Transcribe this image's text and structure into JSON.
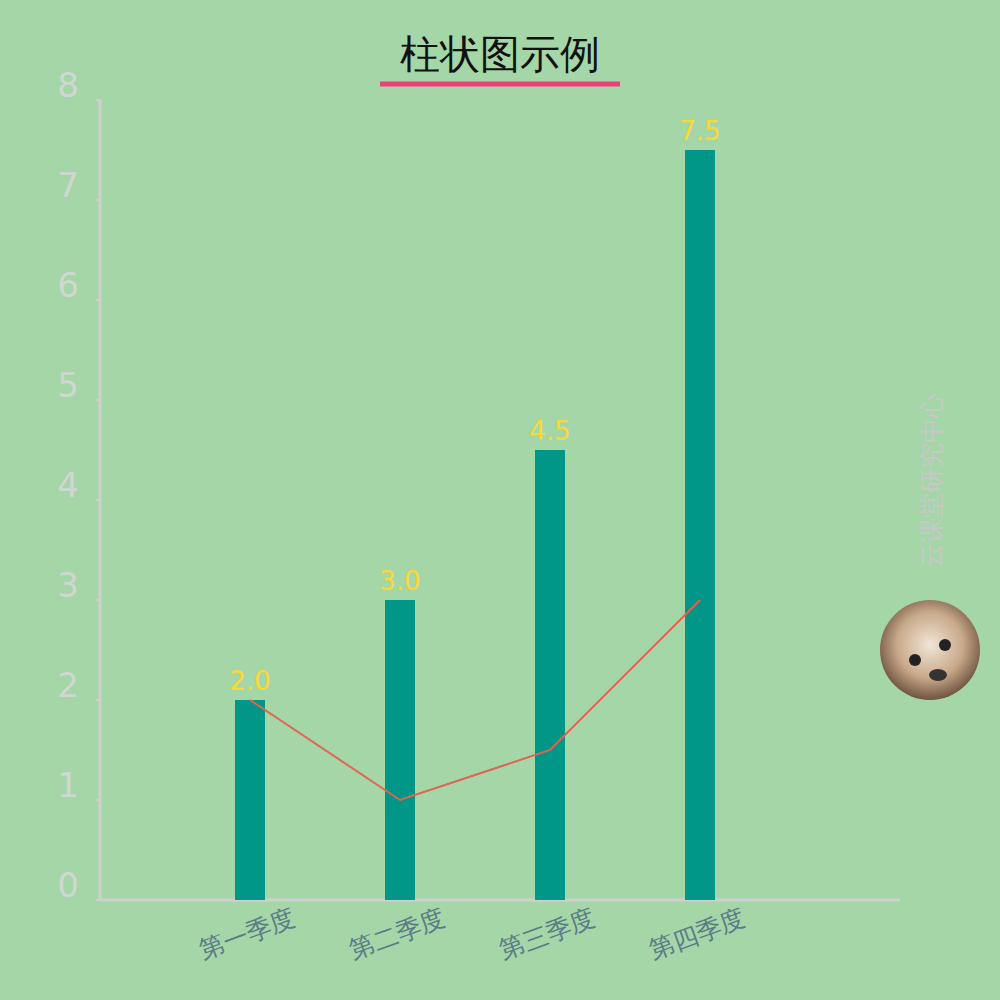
{
  "chart_data": {
    "type": "bar",
    "title": "柱状图示例",
    "categories": [
      "第一季度",
      "第二季度",
      "第三季度",
      "第四季度"
    ],
    "series": [
      {
        "type": "bar",
        "color": "#009688",
        "values": [
          2.0,
          3.0,
          4.5,
          7.5
        ],
        "value_labels": [
          "2.0",
          "3.0",
          "4.5",
          "7.5"
        ]
      },
      {
        "type": "line",
        "color": "#e0644f",
        "values": [
          2.0,
          1.0,
          1.5,
          3.0
        ]
      }
    ],
    "ylim": [
      0,
      8
    ],
    "yticks": [
      0,
      1,
      2,
      3,
      4,
      5,
      6,
      7,
      8
    ],
    "grid": false,
    "data_labels": true,
    "annotations": [
      "云课堂研究中心"
    ]
  }
}
